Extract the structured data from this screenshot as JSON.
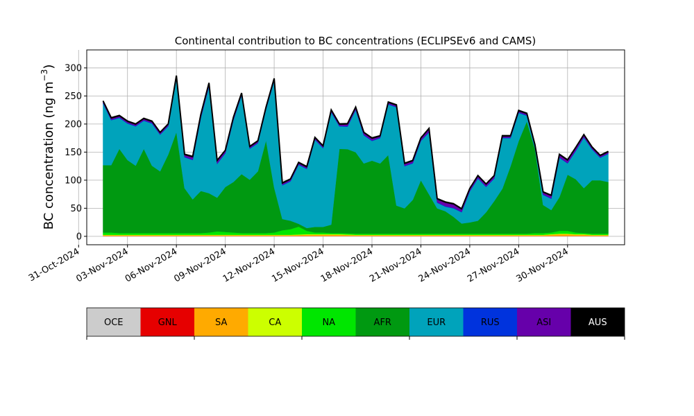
{
  "chart_data": {
    "type": "area",
    "stacked": true,
    "title": "Continental contribution to BC concentrations (ECLIPSEv6 and CAMS)",
    "ylabel": "BC concentration (ng m",
    "ylabel_sup": "−3",
    "ylabel_close": ")",
    "xlabel": "",
    "ylim": [
      -15,
      332
    ],
    "yticks": [
      0,
      50,
      100,
      150,
      200,
      250,
      300
    ],
    "xlim": [
      "2024-10-31T12:00",
      "2024-12-03T12:00"
    ],
    "xticks": [
      "31-Oct-2024",
      "03-Nov-2024",
      "06-Nov-2024",
      "09-Nov-2024",
      "12-Nov-2024",
      "15-Nov-2024",
      "18-Nov-2024",
      "21-Nov-2024",
      "24-Nov-2024",
      "27-Nov-2024",
      "30-Nov-2024"
    ],
    "grid": true,
    "legend_placement": "bottom",
    "series_order_bottom_to_top": [
      "OCE",
      "GNL",
      "SA",
      "CA",
      "NA",
      "AFR",
      "EUR",
      "RUS",
      "ASI",
      "AUS"
    ],
    "legend": [
      {
        "name": "OCE",
        "color": "#cccccc",
        "text_color": "#000000"
      },
      {
        "name": "GNL",
        "color": "#e60000",
        "text_color": "#000000"
      },
      {
        "name": "SA",
        "color": "#ffaa00",
        "text_color": "#000000"
      },
      {
        "name": "CA",
        "color": "#ccff00",
        "text_color": "#000000"
      },
      {
        "name": "NA",
        "color": "#00e600",
        "text_color": "#000000"
      },
      {
        "name": "AFR",
        "color": "#009911",
        "text_color": "#000000"
      },
      {
        "name": "EUR",
        "color": "#00a3bb",
        "text_color": "#000000"
      },
      {
        "name": "RUS",
        "color": "#0033dd",
        "text_color": "#000000"
      },
      {
        "name": "ASI",
        "color": "#6600aa",
        "text_color": "#000000"
      },
      {
        "name": "AUS",
        "color": "#000000",
        "text_color": "#ffffff"
      }
    ],
    "x": [
      "2024-11-01T12:00",
      "2024-11-02T00:00",
      "2024-11-02T12:00",
      "2024-11-03T00:00",
      "2024-11-03T12:00",
      "2024-11-04T00:00",
      "2024-11-04T12:00",
      "2024-11-05T00:00",
      "2024-11-05T12:00",
      "2024-11-06T00:00",
      "2024-11-06T12:00",
      "2024-11-07T00:00",
      "2024-11-07T12:00",
      "2024-11-08T00:00",
      "2024-11-08T12:00",
      "2024-11-09T00:00",
      "2024-11-09T12:00",
      "2024-11-10T00:00",
      "2024-11-10T12:00",
      "2024-11-11T00:00",
      "2024-11-11T12:00",
      "2024-11-12T00:00",
      "2024-11-12T12:00",
      "2024-11-13T00:00",
      "2024-11-13T12:00",
      "2024-11-14T00:00",
      "2024-11-14T12:00",
      "2024-11-15T00:00",
      "2024-11-15T12:00",
      "2024-11-16T00:00",
      "2024-11-16T12:00",
      "2024-11-17T00:00",
      "2024-11-17T12:00",
      "2024-11-18T00:00",
      "2024-11-18T12:00",
      "2024-11-19T00:00",
      "2024-11-19T12:00",
      "2024-11-20T00:00",
      "2024-11-20T12:00",
      "2024-11-21T00:00",
      "2024-11-21T12:00",
      "2024-11-22T00:00",
      "2024-11-22T12:00",
      "2024-11-23T00:00",
      "2024-11-23T12:00",
      "2024-11-24T00:00",
      "2024-11-24T12:00",
      "2024-11-25T00:00",
      "2024-11-25T12:00",
      "2024-11-26T00:00",
      "2024-11-26T12:00",
      "2024-11-27T00:00",
      "2024-11-27T12:00",
      "2024-11-28T00:00",
      "2024-11-28T12:00",
      "2024-11-29T00:00",
      "2024-11-29T12:00",
      "2024-11-30T00:00",
      "2024-11-30T12:00",
      "2024-12-01T00:00",
      "2024-12-01T12:00",
      "2024-12-02T00:00",
      "2024-12-02T12:00"
    ],
    "series": [
      {
        "name": "OCE",
        "values": [
          0.5,
          0.5,
          0.5,
          0.5,
          0.5,
          0.5,
          0.5,
          0.5,
          0.5,
          0.5,
          0.5,
          0.5,
          0.5,
          0.5,
          0.5,
          0.5,
          0.5,
          0.5,
          0.5,
          0.5,
          0.5,
          0.5,
          0.5,
          0.5,
          0.5,
          0.5,
          0.5,
          0.5,
          0.5,
          0.5,
          0.5,
          0.5,
          0.5,
          0.5,
          0.5,
          0.5,
          0.5,
          0.5,
          0.5,
          0.5,
          0.5,
          0.5,
          0.5,
          0.5,
          0.5,
          0.5,
          0.5,
          0.5,
          0.5,
          0.5,
          0.5,
          0.5,
          0.5,
          0.5,
          0.5,
          0.5,
          0.5,
          0.5,
          0.5,
          0.5,
          0.5,
          0.5,
          0.5
        ]
      },
      {
        "name": "GNL",
        "values": [
          0.3,
          0.3,
          0.3,
          0.3,
          0.3,
          0.3,
          0.3,
          0.3,
          0.3,
          0.3,
          0.3,
          0.3,
          0.3,
          0.3,
          0.3,
          0.3,
          0.3,
          0.3,
          0.3,
          0.3,
          0.3,
          0.3,
          0.3,
          0.3,
          0.3,
          0.3,
          0.3,
          0.3,
          0.3,
          0.3,
          0.3,
          0.3,
          0.3,
          0.3,
          0.3,
          0.3,
          0.3,
          0.3,
          0.3,
          0.3,
          0.3,
          0.3,
          0.3,
          0.3,
          0.3,
          0.3,
          0.3,
          0.3,
          0.3,
          0.3,
          0.3,
          0.3,
          0.3,
          0.3,
          0.3,
          0.3,
          0.3,
          0.3,
          0.3,
          0.3,
          0.3,
          0.3,
          0.3
        ]
      },
      {
        "name": "SA",
        "values": [
          1,
          1,
          1,
          1,
          1,
          1,
          1,
          1,
          1,
          1,
          1,
          1,
          1,
          1,
          1,
          1,
          1,
          1,
          1,
          1,
          1,
          1,
          1,
          1,
          1.5,
          2,
          2,
          2,
          2,
          2,
          1.5,
          1,
          1,
          1,
          1,
          1,
          1,
          1,
          1,
          1,
          1,
          1,
          1,
          1,
          1,
          1,
          1,
          1,
          1,
          1,
          1,
          1,
          1,
          1,
          1,
          2,
          3,
          3,
          2,
          2,
          1,
          1,
          1
        ]
      },
      {
        "name": "CA",
        "values": [
          1,
          1,
          1,
          1,
          1,
          1,
          1,
          1,
          1,
          1,
          1,
          1,
          1,
          1,
          1,
          1,
          1,
          1,
          1,
          1,
          1,
          1,
          1,
          1,
          1,
          1,
          1,
          1,
          1,
          1,
          1,
          1,
          1,
          1,
          1,
          1,
          1,
          1,
          1,
          1,
          1,
          1,
          1,
          1,
          1,
          1,
          1,
          1,
          1,
          1,
          1,
          1,
          1,
          1,
          1,
          1,
          1,
          1,
          1,
          1,
          1,
          1,
          1
        ]
      },
      {
        "name": "NA",
        "values": [
          4,
          4,
          3,
          3,
          3,
          3,
          3,
          3,
          3,
          3,
          3,
          3,
          3,
          4,
          6,
          5,
          4,
          3,
          3,
          3,
          3,
          4,
          8,
          10,
          14,
          6,
          3,
          3,
          2,
          2,
          2,
          2,
          2,
          2,
          2,
          2,
          2,
          2,
          2,
          2,
          2,
          2,
          2,
          2,
          2,
          2,
          2,
          2,
          2,
          2,
          2,
          2,
          2,
          3,
          3,
          3,
          5,
          5,
          3,
          2,
          2,
          2,
          2
        ]
      },
      {
        "name": "AFR",
        "values": [
          120,
          120,
          150,
          130,
          120,
          150,
          120,
          110,
          140,
          180,
          80,
          60,
          75,
          70,
          60,
          80,
          90,
          105,
          95,
          110,
          165,
          80,
          20,
          15,
          5,
          5,
          10,
          10,
          15,
          150,
          150,
          145,
          125,
          130,
          125,
          140,
          50,
          45,
          60,
          95,
          70,
          45,
          40,
          30,
          18,
          20,
          23,
          38,
          58,
          80,
          120,
          165,
          200,
          150,
          50,
          40,
          60,
          100,
          95,
          80,
          95,
          95,
          92
        ]
      },
      {
        "name": "EUR",
        "values": [
          110,
          80,
          55,
          65,
          70,
          50,
          75,
          65,
          50,
          95,
          55,
          70,
          130,
          190,
          60,
          60,
          110,
          140,
          55,
          50,
          55,
          190,
          60,
          70,
          105,
          105,
          155,
          140,
          200,
          40,
          40,
          75,
          50,
          35,
          45,
          90,
          175,
          75,
          65,
          70,
          110,
          10,
          8,
          15,
          20,
          55,
          75,
          45,
          40,
          90,
          50,
          50,
          10,
          3,
          18,
          20,
          70,
          20,
          50,
          90,
          55,
          40,
          50
        ]
      },
      {
        "name": "RUS",
        "values": [
          1,
          1,
          1,
          1,
          1,
          1,
          1,
          1,
          1,
          1,
          1,
          1,
          1,
          1,
          1,
          1,
          1,
          1,
          1,
          1,
          1,
          1,
          1,
          1,
          1,
          1,
          1,
          1,
          1,
          1,
          1,
          1,
          1,
          1,
          1,
          1,
          1,
          1,
          1,
          1,
          1,
          1,
          1,
          1,
          1,
          1,
          1,
          1,
          1,
          1,
          1,
          1,
          1,
          1,
          1,
          1,
          1,
          1,
          1,
          1,
          1,
          1,
          1
        ]
      },
      {
        "name": "ASI",
        "values": [
          2,
          2,
          2,
          2,
          2,
          2,
          2,
          2,
          2,
          3,
          3,
          4,
          4,
          4,
          4,
          3,
          3,
          2,
          2,
          2,
          2,
          2,
          2,
          2,
          2,
          2,
          2,
          2,
          2,
          2,
          3,
          3,
          3,
          3,
          2,
          2,
          2,
          3,
          3,
          3,
          5,
          5,
          6,
          6,
          4,
          3,
          3,
          3,
          3,
          2,
          2,
          2,
          2,
          2,
          3,
          4,
          4,
          4,
          4,
          3,
          2,
          2,
          2
        ]
      },
      {
        "name": "AUS",
        "values": [
          1.5,
          1.5,
          1.5,
          1.5,
          1.5,
          1.5,
          1.5,
          1.5,
          1.5,
          1.5,
          1.5,
          1.5,
          1.5,
          1.5,
          1.5,
          1.5,
          1.5,
          1.5,
          1.5,
          1.5,
          1.5,
          1.5,
          1.5,
          1.5,
          1.5,
          1.5,
          1.5,
          1.5,
          1.5,
          1.5,
          1.5,
          1.5,
          1.5,
          1.5,
          1.5,
          1.5,
          1.5,
          1.5,
          1.5,
          1.5,
          1.5,
          1.5,
          1.5,
          1.5,
          1.5,
          1.5,
          1.5,
          1.5,
          1.5,
          1.5,
          1.5,
          1.5,
          1.5,
          1.5,
          1.5,
          1.5,
          1.5,
          1.5,
          1.5,
          1.5,
          1.5,
          1.5,
          1.5
        ]
      }
    ]
  }
}
